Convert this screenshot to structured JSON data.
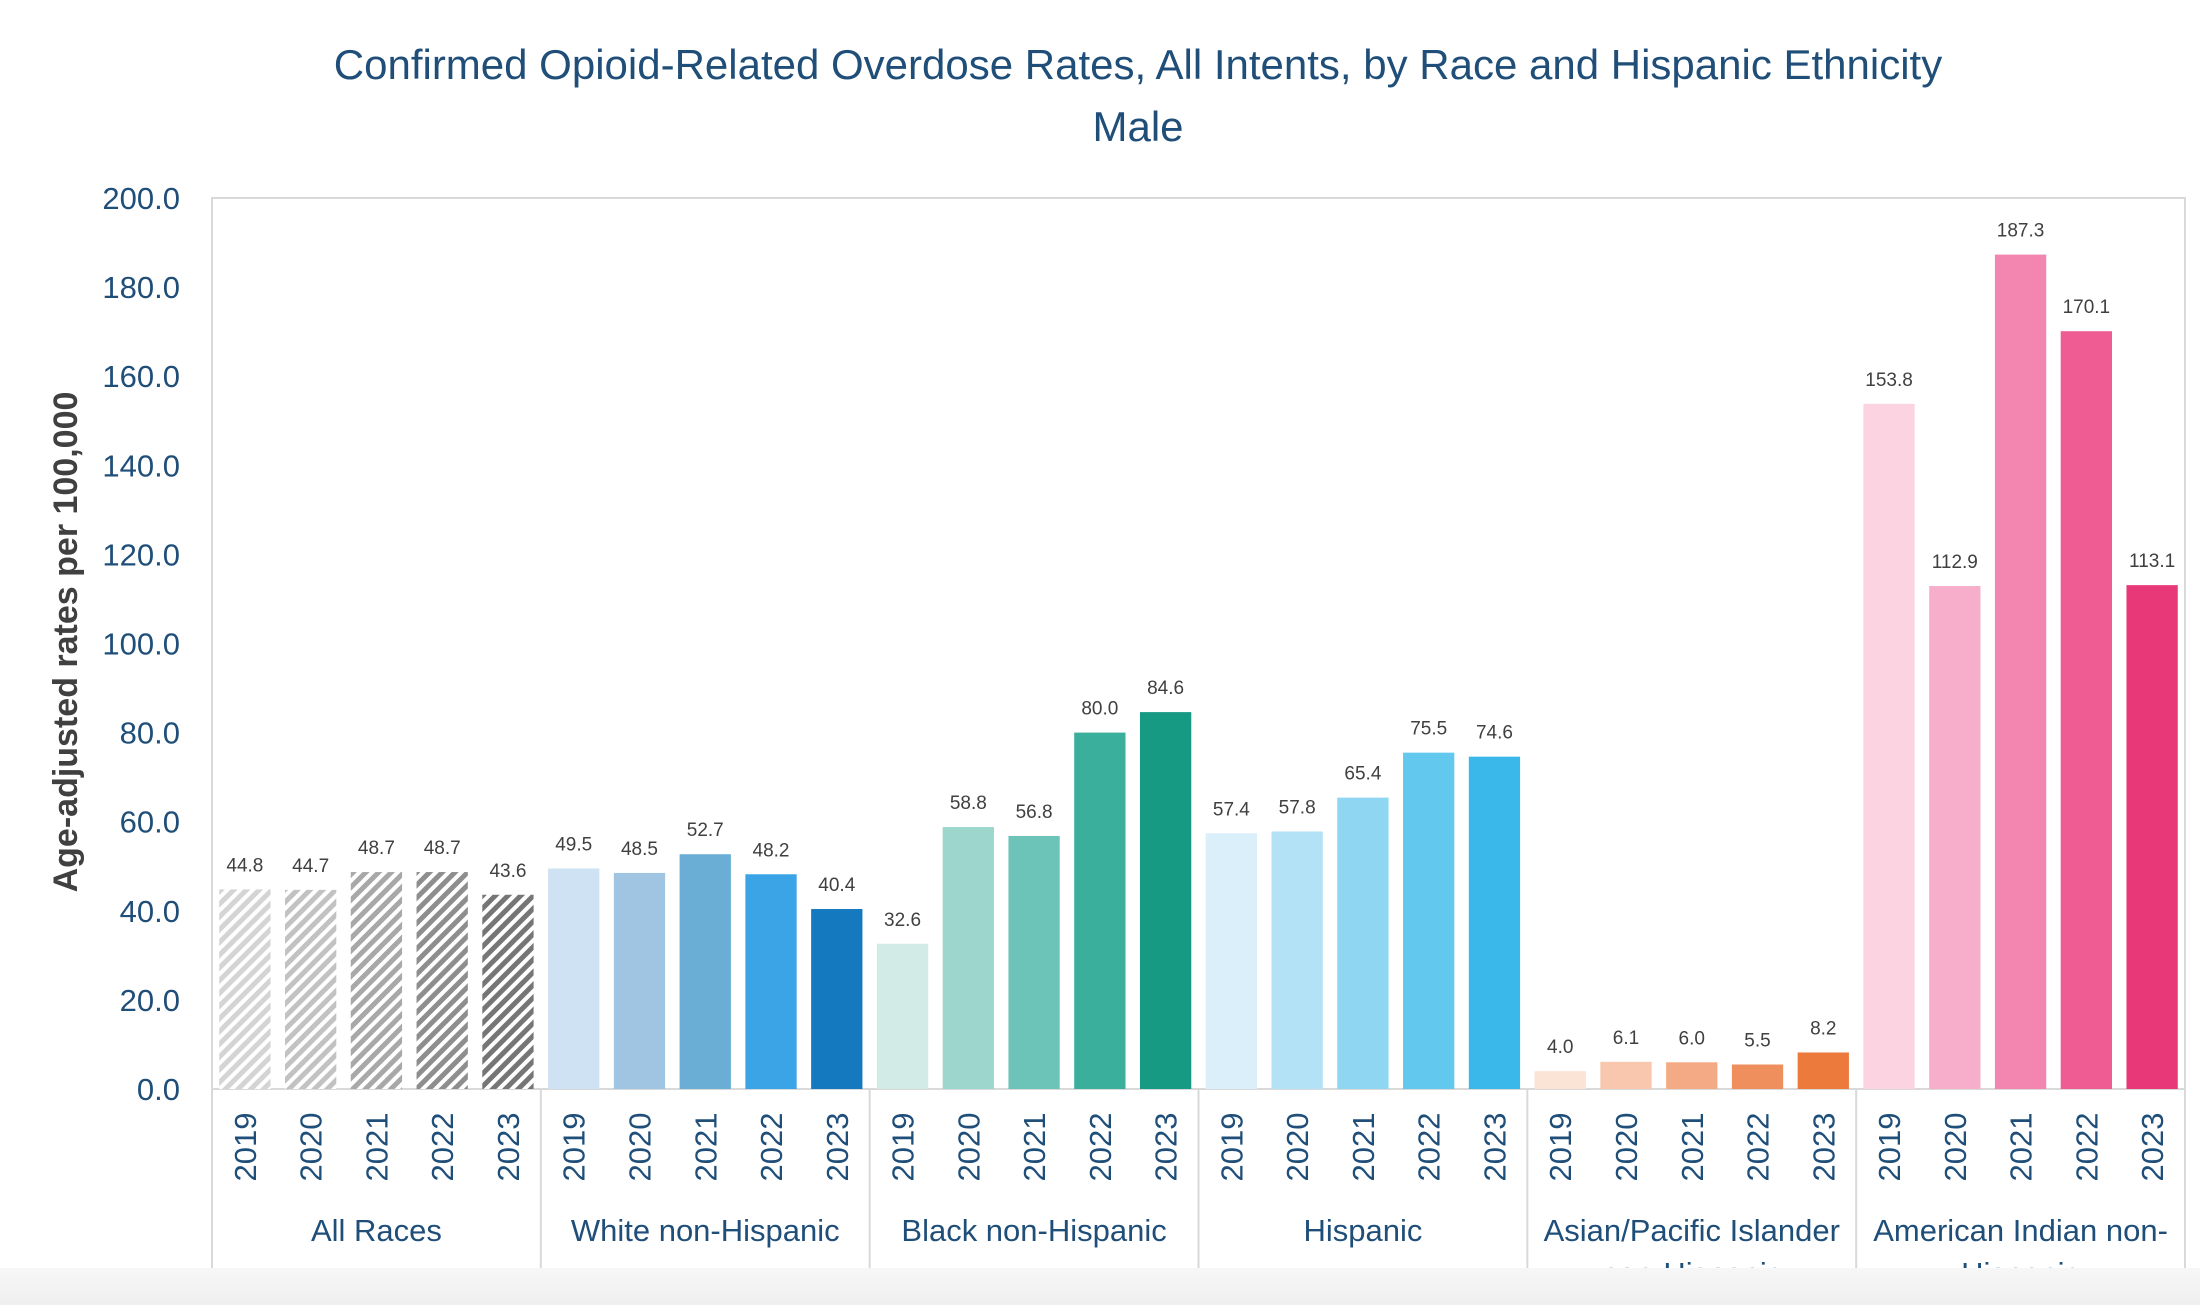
{
  "chart_data": {
    "type": "bar",
    "title": "Confirmed Opioid-Related Overdose Rates, All Intents, by Race and Hispanic Ethnicity",
    "subtitle": "Male",
    "ylabel": "Age-adjusted rates per 100,000",
    "xlabel": "",
    "ylim": [
      0,
      200
    ],
    "yticks": [
      "0.0",
      "20.0",
      "40.0",
      "60.0",
      "80.0",
      "100.0",
      "120.0",
      "140.0",
      "160.0",
      "180.0",
      "200.0"
    ],
    "grid": false,
    "legend": "none",
    "years": [
      "2019",
      "2020",
      "2021",
      "2022",
      "2023"
    ],
    "groups": [
      {
        "name": "All Races",
        "label_lines": [
          "All Races"
        ],
        "values": [
          44.8,
          44.7,
          48.7,
          48.7,
          43.6
        ],
        "value_labels": [
          "44.8",
          "44.7",
          "48.7",
          "48.7",
          "43.6"
        ],
        "colors": [
          "#d4d4d4",
          "#c2c2c2",
          "#a8a8a8",
          "#8e8e8e",
          "#767676"
        ],
        "hatched": true
      },
      {
        "name": "White non-Hispanic",
        "label_lines": [
          "White non-Hispanic"
        ],
        "values": [
          49.5,
          48.5,
          52.7,
          48.2,
          40.4
        ],
        "value_labels": [
          "49.5",
          "48.5",
          "52.7",
          "48.2",
          "40.4"
        ],
        "colors": [
          "#cfe2f3",
          "#9fc5e3",
          "#6aaed6",
          "#3aa4e6",
          "#1479be"
        ],
        "hatched": false
      },
      {
        "name": "Black non-Hispanic",
        "label_lines": [
          "Black non-Hispanic"
        ],
        "values": [
          32.6,
          58.8,
          56.8,
          80.0,
          84.6
        ],
        "value_labels": [
          "32.6",
          "58.8",
          "56.8",
          "80.0",
          "84.6"
        ],
        "colors": [
          "#d3ebe6",
          "#9dd6cc",
          "#6cc3b7",
          "#3aaf9c",
          "#179a84"
        ],
        "hatched": false
      },
      {
        "name": "Hispanic",
        "label_lines": [
          "Hispanic"
        ],
        "values": [
          57.4,
          57.8,
          65.4,
          75.5,
          74.6
        ],
        "value_labels": [
          "57.4",
          "57.8",
          "65.4",
          "75.5",
          "74.6"
        ],
        "colors": [
          "#dbeffa",
          "#b3e2f7",
          "#8ed6f2",
          "#63c8ee",
          "#3bb8ea"
        ],
        "hatched": false
      },
      {
        "name": "Asian/Pacific Islander non-Hispanic",
        "label_lines": [
          "Asian/Pacific Islander",
          "non-Hispanic"
        ],
        "values": [
          4.0,
          6.1,
          6.0,
          5.5,
          8.2
        ],
        "value_labels": [
          "4.0",
          "6.1",
          "6.0",
          "5.5",
          "8.2"
        ],
        "colors": [
          "#fbe3d6",
          "#f8c7ad",
          "#f4ab85",
          "#f08f5e",
          "#ec7a3d"
        ],
        "hatched": false
      },
      {
        "name": "American Indian non-Hispanic",
        "label_lines": [
          "American Indian non-",
          "Hispanic"
        ],
        "values": [
          153.8,
          112.9,
          187.3,
          170.1,
          113.1
        ],
        "value_labels": [
          "153.8",
          "112.9",
          "187.3",
          "170.1",
          "113.1"
        ],
        "colors": [
          "#fbd3e1",
          "#f7aecb",
          "#f286b0",
          "#ee5c93",
          "#e83877"
        ],
        "hatched": false
      }
    ]
  }
}
